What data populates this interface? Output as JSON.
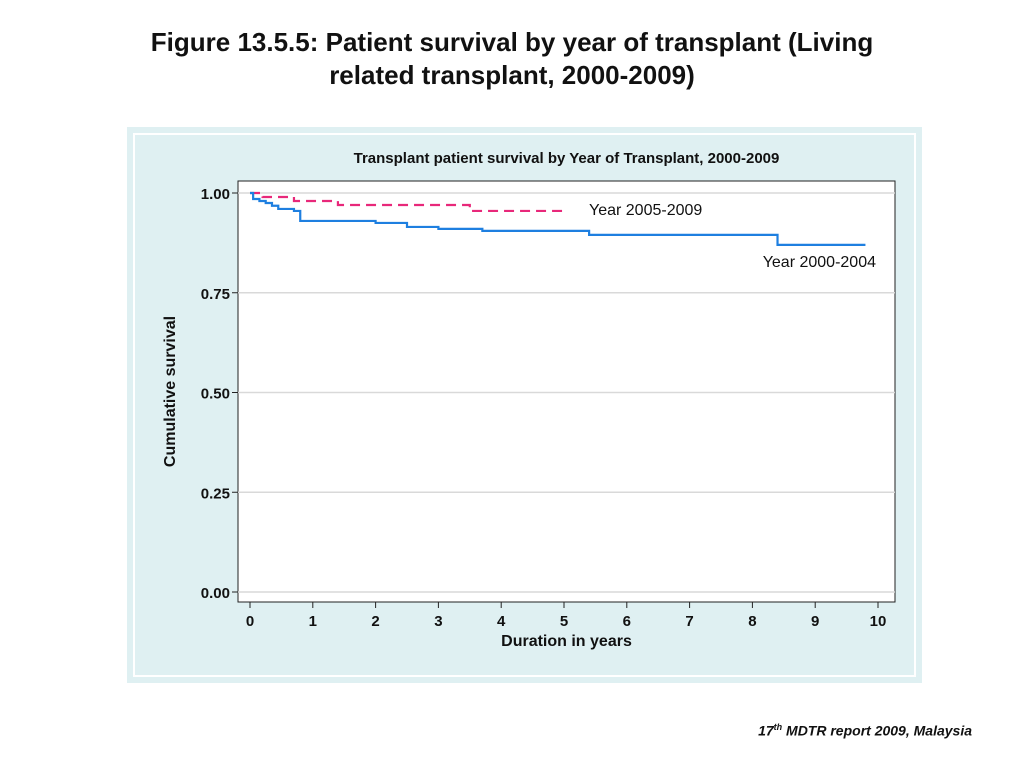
{
  "figure": {
    "title_line1": "Figure 13.5.5:   Patient survival by year of transplant (Living",
    "title_line2": "related transplant, 2000-2009)"
  },
  "footer": {
    "ordinal_number": "17",
    "ordinal_suffix": "th",
    "text": " MDTR report 2009, Malaysia"
  },
  "chart_data": {
    "type": "line",
    "title": "Transplant patient survival by Year of Transplant, 2000-2009",
    "xlabel": "Duration in years",
    "ylabel": "Cumulative survival",
    "xlim": [
      0,
      10
    ],
    "ylim": [
      0,
      1
    ],
    "x_ticks": [
      "0",
      "1",
      "2",
      "3",
      "4",
      "5",
      "6",
      "7",
      "8",
      "9",
      "10"
    ],
    "y_ticks": [
      "0.00",
      "0.25",
      "0.50",
      "0.75",
      "1.00"
    ],
    "grid": true,
    "series": [
      {
        "name": "Year 2005-2009",
        "color": "#e8287a",
        "dash": true,
        "step": true,
        "x": [
          0,
          0.2,
          0.4,
          0.7,
          1.4,
          3.5,
          5.0
        ],
        "y": [
          1.0,
          0.99,
          0.99,
          0.98,
          0.97,
          0.955,
          0.955
        ]
      },
      {
        "name": "Year 2000-2004",
        "color": "#1e7fe0",
        "dash": false,
        "step": true,
        "x": [
          0,
          0.05,
          0.15,
          0.25,
          0.35,
          0.45,
          0.7,
          0.8,
          2.0,
          2.5,
          3.0,
          3.7,
          5.4,
          8.4,
          9.8
        ],
        "y": [
          1.0,
          0.985,
          0.98,
          0.975,
          0.968,
          0.96,
          0.955,
          0.93,
          0.925,
          0.915,
          0.91,
          0.905,
          0.895,
          0.87,
          0.87
        ]
      }
    ]
  }
}
